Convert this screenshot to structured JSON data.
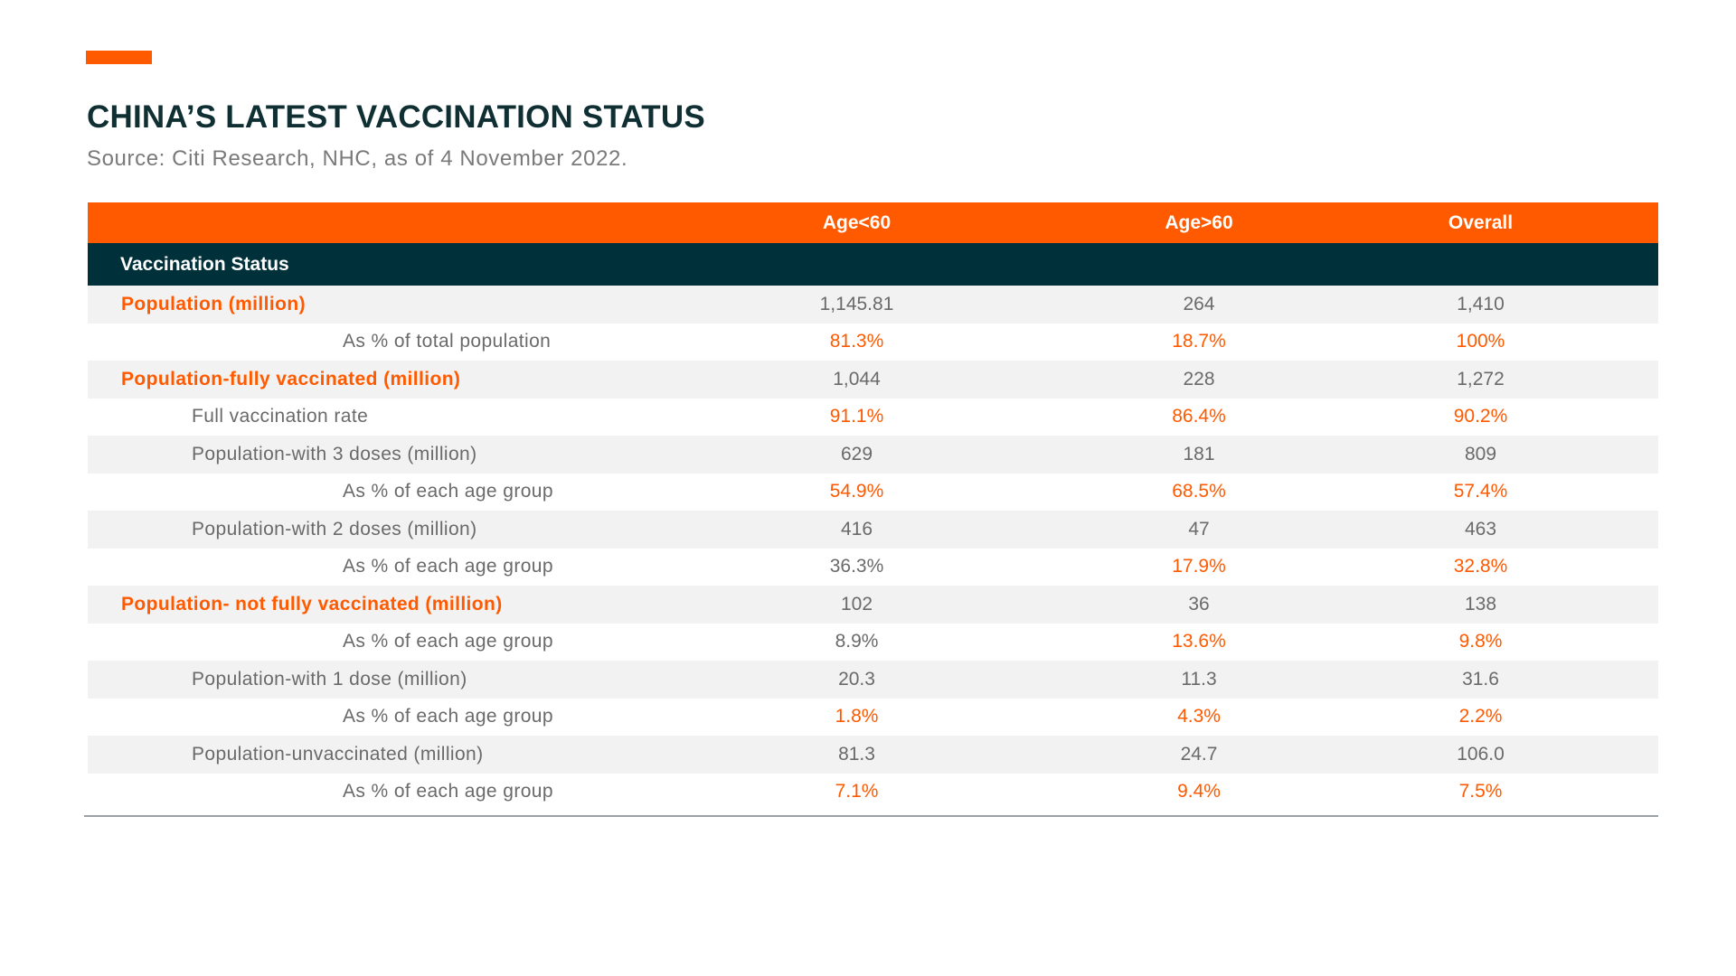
{
  "title": "CHINA’S LATEST VACCINATION STATUS",
  "subtitle": "Source: Citi Research, NHC, as of 4 November 2022.",
  "colors": {
    "accent": "#ff5a00",
    "dark_header": "#00313a",
    "title": "#0f2f33",
    "row_shade": "#f2f2f2",
    "text_gray": "#6a6a6a"
  },
  "chart_data": {
    "type": "table",
    "title": "CHINA’S LATEST VACCINATION STATUS",
    "subtitle": "Source: Citi Research, NHC, as of 4 November 2022.",
    "columns": [
      "",
      "Age<60",
      "Age>60",
      "Overall"
    ],
    "section_header": "Vaccination Status",
    "rows": [
      {
        "label": "Population (million)",
        "level": 0,
        "values": [
          "1,145.81",
          "264",
          "1,410"
        ],
        "highlight": [
          false,
          false,
          false
        ]
      },
      {
        "label": "As % of total population",
        "level": 2,
        "values": [
          "81.3%",
          "18.7%",
          "100%"
        ],
        "highlight": [
          true,
          true,
          true
        ]
      },
      {
        "label": "Population-fully vaccinated (million)",
        "level": 0,
        "values": [
          "1,044",
          "228",
          "1,272"
        ],
        "highlight": [
          false,
          false,
          false
        ]
      },
      {
        "label": "Full vaccination rate",
        "level": 1,
        "values": [
          "91.1%",
          "86.4%",
          "90.2%"
        ],
        "highlight": [
          true,
          true,
          true
        ]
      },
      {
        "label": "Population-with 3 doses (million)",
        "level": 1,
        "values": [
          "629",
          "181",
          "809"
        ],
        "highlight": [
          false,
          false,
          false
        ]
      },
      {
        "label": "As % of each age group",
        "level": 2,
        "values": [
          "54.9%",
          "68.5%",
          "57.4%"
        ],
        "highlight": [
          true,
          true,
          true
        ]
      },
      {
        "label": "Population-with 2 doses (million)",
        "level": 1,
        "values": [
          "416",
          "47",
          "463"
        ],
        "highlight": [
          false,
          false,
          false
        ]
      },
      {
        "label": "As % of each age group",
        "level": 2,
        "values": [
          "36.3%",
          "17.9%",
          "32.8%"
        ],
        "highlight": [
          false,
          true,
          true
        ]
      },
      {
        "label": "Population- not fully vaccinated (million)",
        "level": 0,
        "values": [
          "102",
          "36",
          "138"
        ],
        "highlight": [
          false,
          false,
          false
        ]
      },
      {
        "label": "As % of each age group",
        "level": 2,
        "values": [
          "8.9%",
          "13.6%",
          "9.8%"
        ],
        "highlight": [
          false,
          true,
          true
        ]
      },
      {
        "label": "Population-with 1 dose (million)",
        "level": 1,
        "values": [
          "20.3",
          "11.3",
          "31.6"
        ],
        "highlight": [
          false,
          false,
          false
        ]
      },
      {
        "label": "As % of each age group",
        "level": 2,
        "values": [
          "1.8%",
          "4.3%",
          "2.2%"
        ],
        "highlight": [
          true,
          true,
          true
        ]
      },
      {
        "label": "Population-unvaccinated (million)",
        "level": 1,
        "values": [
          "81.3",
          "24.7",
          "106.0"
        ],
        "highlight": [
          false,
          false,
          false
        ]
      },
      {
        "label": "As % of each age group",
        "level": 2,
        "values": [
          "7.1%",
          "9.4%",
          "7.5%"
        ],
        "highlight": [
          true,
          true,
          true
        ]
      }
    ]
  }
}
